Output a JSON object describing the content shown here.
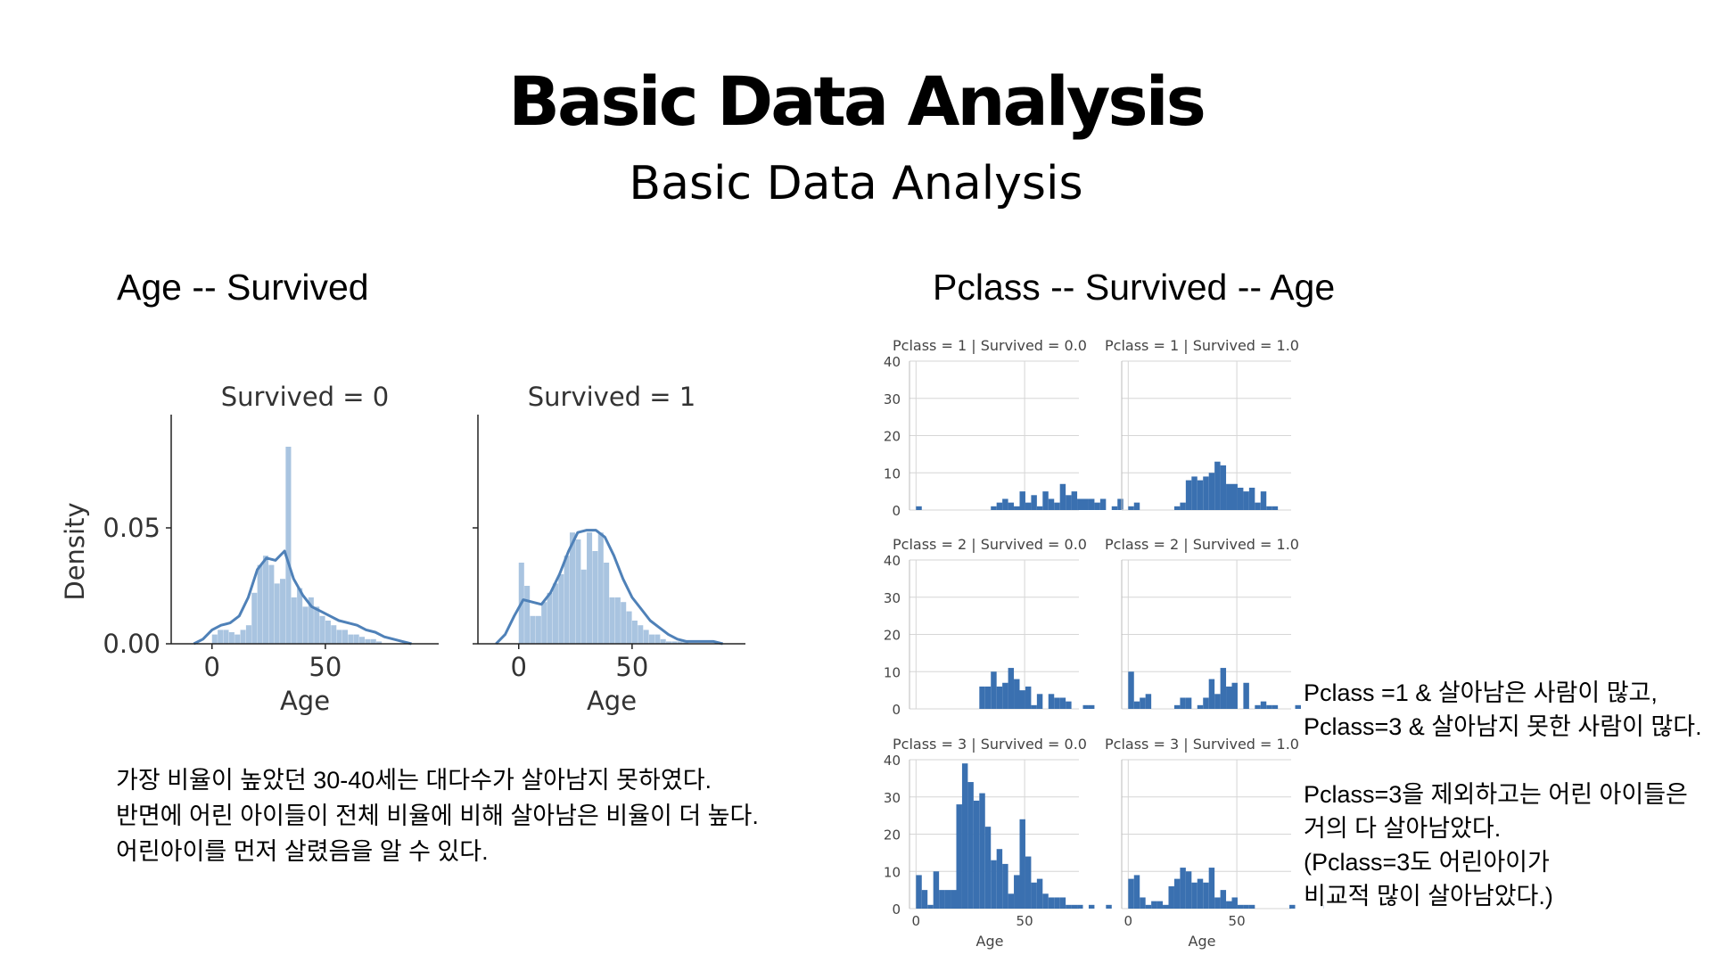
{
  "slide": {
    "title": "Basic Data Analysis",
    "subtitle": "Basic Data Analysis",
    "left_heading": "Age -- Survived",
    "right_heading": "Pclass -- Survived -- Age",
    "left_text": [
      "가장 비율이 높았던 30-40세는 대다수가 살아남지 못하였다.",
      "반면에 어린 아이들이 전체 비율에 비해 살아남은 비율이 더 높다.",
      "어린아이를 먼저 살렸음을 알 수 있다."
    ],
    "right_text": [
      "Pclass =1 & 살아남은 사람이 많고,",
      "Pclass=3 & 살아남지 못한 사람이 많다.",
      "",
      "Pclass=3을 제외하고는 어린 아이들은",
      "거의 다 살아남았다.",
      " (Pclass=3도 어린아이가",
      "비교적 많이 살아남았다.)"
    ]
  },
  "colors": {
    "hist_light": "#a9c4e0",
    "kde_line": "#4f81b8",
    "facet_bar": "#3a70b0",
    "grid": "#d6d6d6"
  },
  "chart_data": [
    {
      "type": "bar",
      "subtype": "histogram-kde",
      "panels": [
        {
          "title": "Survived = 0",
          "bin_edges": [
            0,
            2.5,
            5,
            7.5,
            10,
            12.5,
            15,
            17.5,
            20,
            22.5,
            25,
            27.5,
            30,
            32.5,
            35,
            37.5,
            40,
            42.5,
            45,
            47.5,
            50,
            52.5,
            55,
            57.5,
            60,
            62.5,
            65,
            67.5,
            70,
            72.5,
            75
          ],
          "hist_density": [
            0.004,
            0.006,
            0.006,
            0.005,
            0.004,
            0.006,
            0.008,
            0.022,
            0.034,
            0.038,
            0.034,
            0.026,
            0.028,
            0.085,
            0.02,
            0.024,
            0.016,
            0.02,
            0.016,
            0.012,
            0.01,
            0.008,
            0.006,
            0.006,
            0.004,
            0.004,
            0.003,
            0.002,
            0.002,
            0.001
          ],
          "kde_x": [
            -8,
            -4,
            0,
            4,
            8,
            12,
            16,
            20,
            24,
            28,
            32,
            36,
            40,
            44,
            48,
            52,
            56,
            60,
            64,
            68,
            72,
            76,
            80,
            84,
            88
          ],
          "kde_y": [
            0,
            0.002,
            0.006,
            0.008,
            0.009,
            0.012,
            0.02,
            0.032,
            0.037,
            0.036,
            0.04,
            0.028,
            0.021,
            0.016,
            0.014,
            0.012,
            0.01,
            0.009,
            0.008,
            0.006,
            0.005,
            0.003,
            0.002,
            0.001,
            0
          ]
        },
        {
          "title": "Survived = 1",
          "bin_edges": [
            0,
            2.5,
            5,
            7.5,
            10,
            12.5,
            15,
            17.5,
            20,
            22.5,
            25,
            27.5,
            30,
            32.5,
            35,
            37.5,
            40,
            42.5,
            45,
            47.5,
            50,
            52.5,
            55,
            57.5,
            60,
            62.5,
            65,
            67.5,
            70,
            72.5,
            75
          ],
          "hist_density": [
            0.035,
            0.025,
            0.012,
            0.012,
            0.018,
            0.022,
            0.026,
            0.03,
            0.038,
            0.048,
            0.045,
            0.032,
            0.048,
            0.04,
            0.048,
            0.035,
            0.02,
            0.02,
            0.018,
            0.014,
            0.01,
            0.008,
            0.006,
            0.004,
            0.004,
            0.002,
            0.001,
            0.001,
            0.001,
            0.001
          ],
          "kde_x": [
            -10,
            -6,
            -2,
            2,
            6,
            10,
            14,
            18,
            22,
            26,
            30,
            34,
            38,
            42,
            46,
            50,
            54,
            58,
            62,
            66,
            70,
            74,
            78,
            82,
            86,
            90
          ],
          "kde_y": [
            0,
            0.004,
            0.012,
            0.019,
            0.018,
            0.017,
            0.022,
            0.03,
            0.04,
            0.048,
            0.049,
            0.049,
            0.046,
            0.038,
            0.028,
            0.02,
            0.015,
            0.01,
            0.007,
            0.004,
            0.002,
            0.001,
            0.001,
            0.001,
            0.001,
            0
          ]
        }
      ],
      "xlabel": "Age",
      "ylabel": "Density",
      "yticks": [
        0.0,
        0.05
      ],
      "ytick_labels": [
        "0.00",
        "0.05"
      ],
      "xticks": [
        0,
        50
      ],
      "ylim": [
        0,
        0.095
      ],
      "xlim": [
        -18,
        100
      ]
    },
    {
      "type": "bar",
      "subtype": "facet-histogram",
      "bin_start": 0,
      "bin_width": 2.65,
      "xlim": [
        -3,
        75
      ],
      "ylim": [
        0,
        40
      ],
      "xticks": [
        0,
        50
      ],
      "yticks": [
        0,
        10,
        20,
        30,
        40
      ],
      "xlabel": "Age",
      "panels": [
        {
          "title": "Pclass = 1 | Survived = 0.0",
          "counts": [
            1,
            0,
            0,
            0,
            0,
            0,
            0,
            0,
            0,
            0,
            0,
            0,
            0,
            1,
            2,
            3,
            2,
            1,
            5,
            2,
            4,
            1,
            5,
            3,
            2,
            7,
            4,
            5,
            3,
            3,
            3,
            2,
            3,
            0,
            1,
            3
          ]
        },
        {
          "title": "Pclass = 1 | Survived = 1.0",
          "counts": [
            1,
            2,
            0,
            0,
            0,
            0,
            0,
            0,
            1,
            2,
            8,
            9,
            8,
            9,
            10,
            13,
            12,
            7,
            7,
            6,
            5,
            6,
            2,
            5,
            1,
            1,
            0,
            0,
            0,
            0,
            0,
            0,
            0,
            0,
            0,
            0,
            0,
            0,
            0,
            0,
            0,
            0,
            0,
            0,
            0,
            0,
            0,
            0,
            0,
            0,
            0,
            0,
            0,
            0,
            0,
            0,
            0,
            1
          ]
        },
        {
          "title": "Pclass = 2 | Survived = 0.0",
          "counts": [
            0,
            0,
            0,
            0,
            0,
            0,
            0,
            0,
            0,
            0,
            0,
            6,
            6,
            10,
            6,
            7,
            11,
            8,
            5,
            6,
            1,
            4,
            0,
            4,
            3,
            3,
            2,
            0,
            0,
            1,
            1
          ]
        },
        {
          "title": "Pclass = 2 | Survived = 1.0",
          "counts": [
            10,
            2,
            3,
            4,
            0,
            0,
            0,
            0,
            1,
            3,
            3,
            0,
            1,
            3,
            8,
            4,
            11,
            6,
            7,
            0,
            7,
            0,
            1,
            2,
            1,
            1,
            0,
            0,
            0,
            1
          ]
        },
        {
          "title": "Pclass = 3 | Survived = 0.0",
          "counts": [
            9,
            5,
            1,
            10,
            5,
            5,
            5,
            28,
            39,
            34,
            29,
            31,
            22,
            13,
            16,
            12,
            4,
            9,
            24,
            14,
            7,
            8,
            4,
            3,
            3,
            3,
            1,
            1,
            1,
            0,
            1,
            0,
            0,
            1,
            0
          ]
        },
        {
          "title": "Pclass = 3 | Survived = 1.0",
          "counts": [
            8,
            9,
            3,
            1,
            2,
            2,
            1,
            6,
            8,
            11,
            10,
            7,
            8,
            7,
            11,
            3,
            5,
            2,
            3,
            1,
            1,
            1,
            0,
            0,
            0,
            0,
            0,
            0,
            1,
            0,
            0,
            0,
            0,
            0,
            1
          ]
        }
      ]
    }
  ]
}
